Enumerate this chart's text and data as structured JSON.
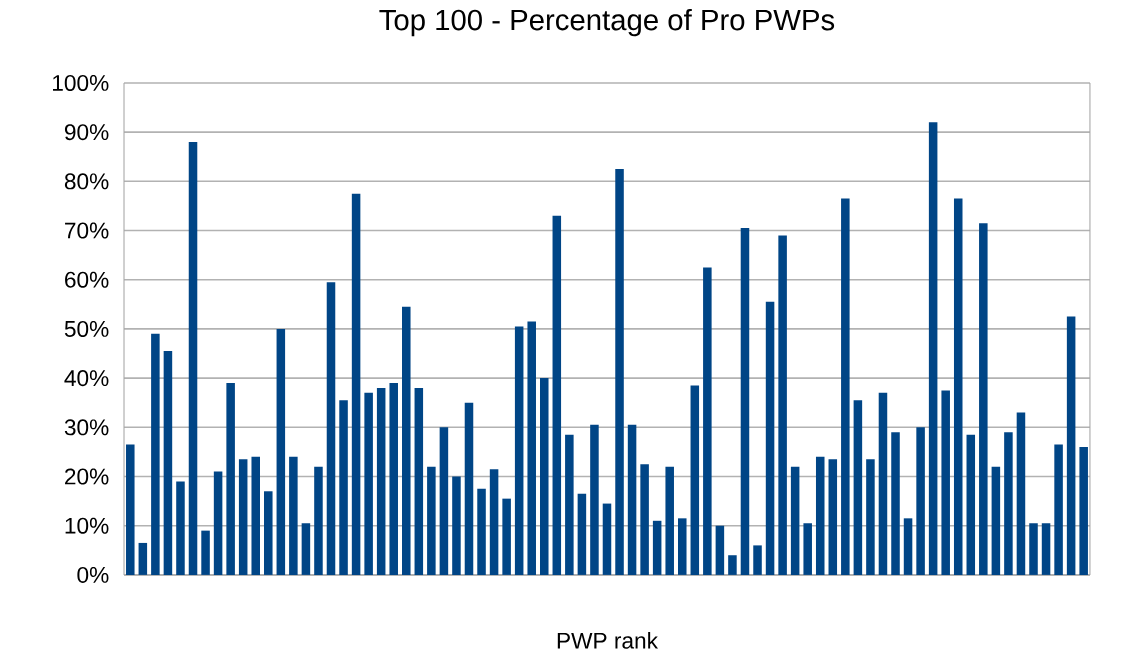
{
  "chart_data": {
    "type": "bar",
    "title": "Top 100 - Percentage of Pro PWPs",
    "xlabel": "PWP rank",
    "categories": [
      null,
      null,
      null,
      null,
      null,
      null,
      null,
      null,
      null,
      null,
      null,
      null,
      null,
      null,
      null,
      null,
      null,
      null,
      null,
      null,
      null,
      null,
      null,
      null,
      null,
      null,
      null,
      null,
      null,
      null,
      null,
      null,
      null,
      null,
      null,
      null,
      null,
      null,
      null,
      null,
      null,
      null,
      null,
      null,
      null,
      null,
      null,
      null,
      null,
      null,
      null,
      null,
      null,
      null,
      null,
      null,
      null,
      null,
      null,
      null,
      null,
      null,
      null,
      null,
      null,
      null,
      null,
      null,
      null,
      null,
      null,
      null,
      null,
      null,
      null,
      null,
      null
    ],
    "values": [
      26.5,
      6.5,
      49,
      45.5,
      19,
      88,
      9,
      21,
      39,
      23.5,
      24,
      17,
      50,
      24,
      10.5,
      22,
      59.5,
      35.5,
      77.5,
      37,
      38,
      39,
      54.5,
      38,
      22,
      30,
      20,
      35,
      17.5,
      21.5,
      15.5,
      50.5,
      51.5,
      40,
      73,
      28.5,
      16.5,
      30.5,
      14.5,
      82.5,
      30.5,
      22.5,
      11,
      22,
      11.5,
      38.5,
      62.5,
      10,
      4,
      70.5,
      6,
      55.5,
      69,
      22,
      10.5,
      24,
      23.5,
      76.5,
      35.5,
      23.5,
      37,
      29,
      11.5,
      30,
      92,
      37.5,
      76.5,
      28.5,
      71.5,
      22,
      29,
      33,
      10.5,
      10.5,
      26.5,
      52.5,
      26
    ],
    "color": "#004586",
    "ylim": [
      0,
      100
    ],
    "yticks": [
      {
        "value": 0,
        "label": "0%"
      },
      {
        "value": 10,
        "label": "10%"
      },
      {
        "value": 20,
        "label": "20%"
      },
      {
        "value": 30,
        "label": "30%"
      },
      {
        "value": 40,
        "label": "40%"
      },
      {
        "value": 50,
        "label": "50%"
      },
      {
        "value": 60,
        "label": "60%"
      },
      {
        "value": 70,
        "label": "70%"
      },
      {
        "value": 80,
        "label": "80%"
      },
      {
        "value": 90,
        "label": "90%"
      },
      {
        "value": 100,
        "label": "100%"
      }
    ],
    "grid": "y"
  }
}
